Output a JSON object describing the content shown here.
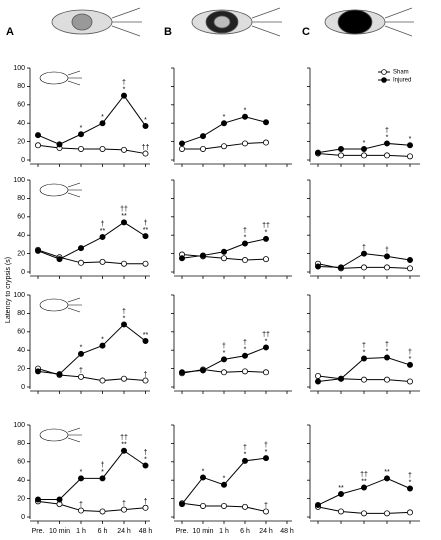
{
  "panel_labels": [
    "A",
    "B",
    "C"
  ],
  "y_label": "Latency to crypsis (s)",
  "categories": [
    "Pre.",
    "10 min",
    "1 h",
    "6 h",
    "24 h",
    "48 h"
  ],
  "ylim": [
    0,
    100
  ],
  "yticks": [
    0,
    20,
    40,
    60,
    80,
    100
  ],
  "series_colors": [
    "#ffffff",
    "#000000"
  ],
  "chart_data": [
    {
      "type": "line",
      "series": [
        {
          "values": [
            16,
            13,
            12,
            12,
            11,
            7
          ],
          "annotations": [
            null,
            null,
            null,
            null,
            null,
            [
              "††"
            ]
          ]
        },
        {
          "values": [
            27,
            17,
            28,
            40,
            70,
            37
          ],
          "annotations": [
            null,
            null,
            [
              "*"
            ],
            [
              "*"
            ],
            [
              "†",
              "*"
            ],
            [
              "*"
            ]
          ]
        }
      ]
    },
    {
      "type": "line",
      "series": [
        {
          "values": [
            12,
            12,
            15,
            18,
            19,
            null
          ],
          "annotations": [
            null,
            null,
            null,
            null,
            null,
            null
          ]
        },
        {
          "values": [
            18,
            26,
            40,
            47,
            41,
            null
          ],
          "annotations": [
            null,
            null,
            [
              "*"
            ],
            [
              "*"
            ],
            null,
            null
          ]
        }
      ]
    },
    {
      "type": "line",
      "series": [
        {
          "name": "Sham",
          "values": [
            7,
            5,
            5,
            5,
            4,
            null
          ],
          "annotations": [
            null,
            null,
            null,
            null,
            null,
            null
          ]
        },
        {
          "name": "Injured",
          "values": [
            8,
            12,
            12,
            18,
            16,
            null
          ],
          "annotations": [
            null,
            null,
            [
              "*"
            ],
            [
              "†",
              "*"
            ],
            [
              "*"
            ],
            null
          ]
        }
      ]
    },
    {
      "type": "line",
      "series": [
        {
          "values": [
            24,
            16,
            10,
            11,
            9,
            9
          ],
          "annotations": [
            null,
            null,
            null,
            null,
            null,
            null
          ]
        },
        {
          "values": [
            23,
            14,
            26,
            38,
            54,
            39
          ],
          "annotations": [
            null,
            null,
            null,
            [
              "†",
              "**"
            ],
            [
              "††",
              "**"
            ],
            [
              "†",
              "**"
            ]
          ]
        }
      ]
    },
    {
      "type": "line",
      "series": [
        {
          "values": [
            19,
            17,
            15,
            13,
            14,
            null
          ],
          "annotations": [
            null,
            null,
            null,
            null,
            null,
            null
          ]
        },
        {
          "values": [
            15,
            18,
            22,
            31,
            36,
            null
          ],
          "annotations": [
            null,
            null,
            null,
            [
              "†",
              "*"
            ],
            [
              "††",
              "*"
            ],
            null
          ]
        }
      ]
    },
    {
      "type": "line",
      "series": [
        {
          "values": [
            9,
            4,
            5,
            5,
            4,
            null
          ],
          "annotations": [
            null,
            null,
            null,
            null,
            null,
            null
          ]
        },
        {
          "values": [
            6,
            5,
            20,
            17,
            13,
            null
          ],
          "annotations": [
            null,
            null,
            [
              "†"
            ],
            [
              "†"
            ],
            null,
            null
          ]
        }
      ]
    },
    {
      "type": "line",
      "series": [
        {
          "values": [
            20,
            13,
            11,
            7,
            9,
            7
          ],
          "annotations": [
            null,
            null,
            [
              "†"
            ],
            null,
            null,
            [
              "†"
            ]
          ]
        },
        {
          "values": [
            17,
            14,
            36,
            45,
            68,
            50
          ],
          "annotations": [
            null,
            null,
            [
              "*"
            ],
            [
              "*"
            ],
            [
              "†",
              "*"
            ],
            [
              "**"
            ]
          ]
        }
      ]
    },
    {
      "type": "line",
      "series": [
        {
          "values": [
            15,
            19,
            16,
            17,
            16,
            null
          ],
          "annotations": [
            null,
            null,
            null,
            null,
            null,
            null
          ]
        },
        {
          "values": [
            16,
            18,
            30,
            34,
            43,
            null
          ],
          "annotations": [
            null,
            null,
            [
              "†",
              "*"
            ],
            [
              "†",
              "*"
            ],
            [
              "††",
              "*"
            ],
            null
          ]
        }
      ]
    },
    {
      "type": "line",
      "series": [
        {
          "values": [
            12,
            9,
            8,
            8,
            6,
            null
          ],
          "annotations": [
            null,
            null,
            null,
            null,
            null,
            null
          ]
        },
        {
          "values": [
            6,
            9,
            31,
            32,
            24,
            null
          ],
          "annotations": [
            null,
            null,
            [
              "†",
              "*"
            ],
            [
              "†",
              "*"
            ],
            [
              "†",
              "*"
            ],
            null
          ]
        }
      ]
    },
    {
      "type": "line",
      "series": [
        {
          "values": [
            17,
            14,
            7,
            6,
            8,
            10
          ],
          "annotations": [
            null,
            null,
            [
              "†"
            ],
            null,
            [
              "†"
            ],
            [
              "†"
            ]
          ]
        },
        {
          "values": [
            19,
            19,
            42,
            42,
            72,
            56
          ],
          "annotations": [
            null,
            null,
            [
              "*"
            ],
            [
              "†",
              "*"
            ],
            [
              "††",
              "**"
            ],
            [
              "†",
              "*"
            ]
          ]
        }
      ]
    },
    {
      "type": "line",
      "series": [
        {
          "values": [
            15,
            12,
            12,
            11,
            6,
            null
          ],
          "annotations": [
            null,
            null,
            null,
            null,
            [
              "†"
            ],
            null
          ]
        },
        {
          "values": [
            14,
            43,
            35,
            61,
            64,
            null
          ],
          "annotations": [
            null,
            [
              "*"
            ],
            [
              "*"
            ],
            [
              "†",
              "*"
            ],
            [
              "†",
              "*"
            ],
            null
          ]
        }
      ]
    },
    {
      "type": "line",
      "series": [
        {
          "values": [
            11,
            6,
            4,
            4,
            5,
            null
          ],
          "annotations": [
            null,
            null,
            null,
            null,
            null,
            null
          ]
        },
        {
          "values": [
            13,
            25,
            32,
            42,
            31,
            null
          ],
          "annotations": [
            null,
            [
              "**"
            ],
            [
              "††",
              "**"
            ],
            [
              "**"
            ],
            [
              "†",
              "*"
            ],
            null
          ]
        }
      ]
    }
  ]
}
